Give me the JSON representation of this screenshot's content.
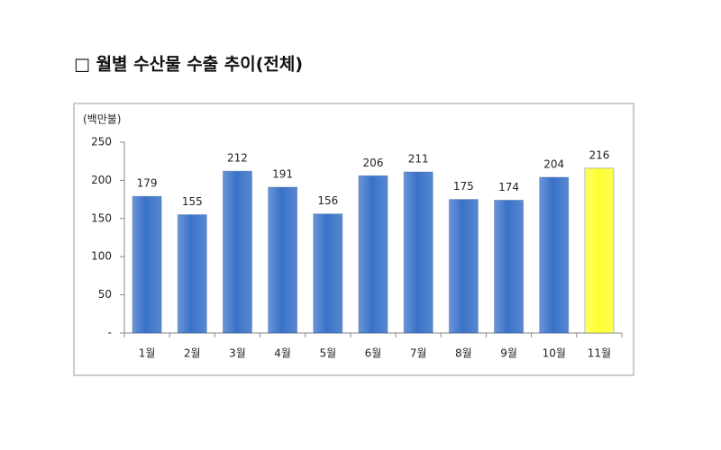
{
  "chart_data": {
    "type": "bar",
    "title": "□ 월별 수산물 수출 추이(전체)",
    "y_label": "(백만불)",
    "categories": [
      "1월",
      "2월",
      "3월",
      "4월",
      "5월",
      "6월",
      "7월",
      "8월",
      "9월",
      "10월",
      "11월"
    ],
    "values": [
      179,
      155,
      212,
      191,
      156,
      206,
      211,
      175,
      174,
      204,
      216
    ],
    "colors": [
      "#3a72c8",
      "#3a72c8",
      "#3a72c8",
      "#3a72c8",
      "#3a72c8",
      "#3a72c8",
      "#3a72c8",
      "#3a72c8",
      "#3a72c8",
      "#3a72c8",
      "#ffff33"
    ],
    "ylim": [
      0,
      250
    ],
    "yticks": [
      {
        "value": 0,
        "label": "-"
      },
      50,
      100,
      150,
      200,
      250
    ],
    "grid": false
  }
}
